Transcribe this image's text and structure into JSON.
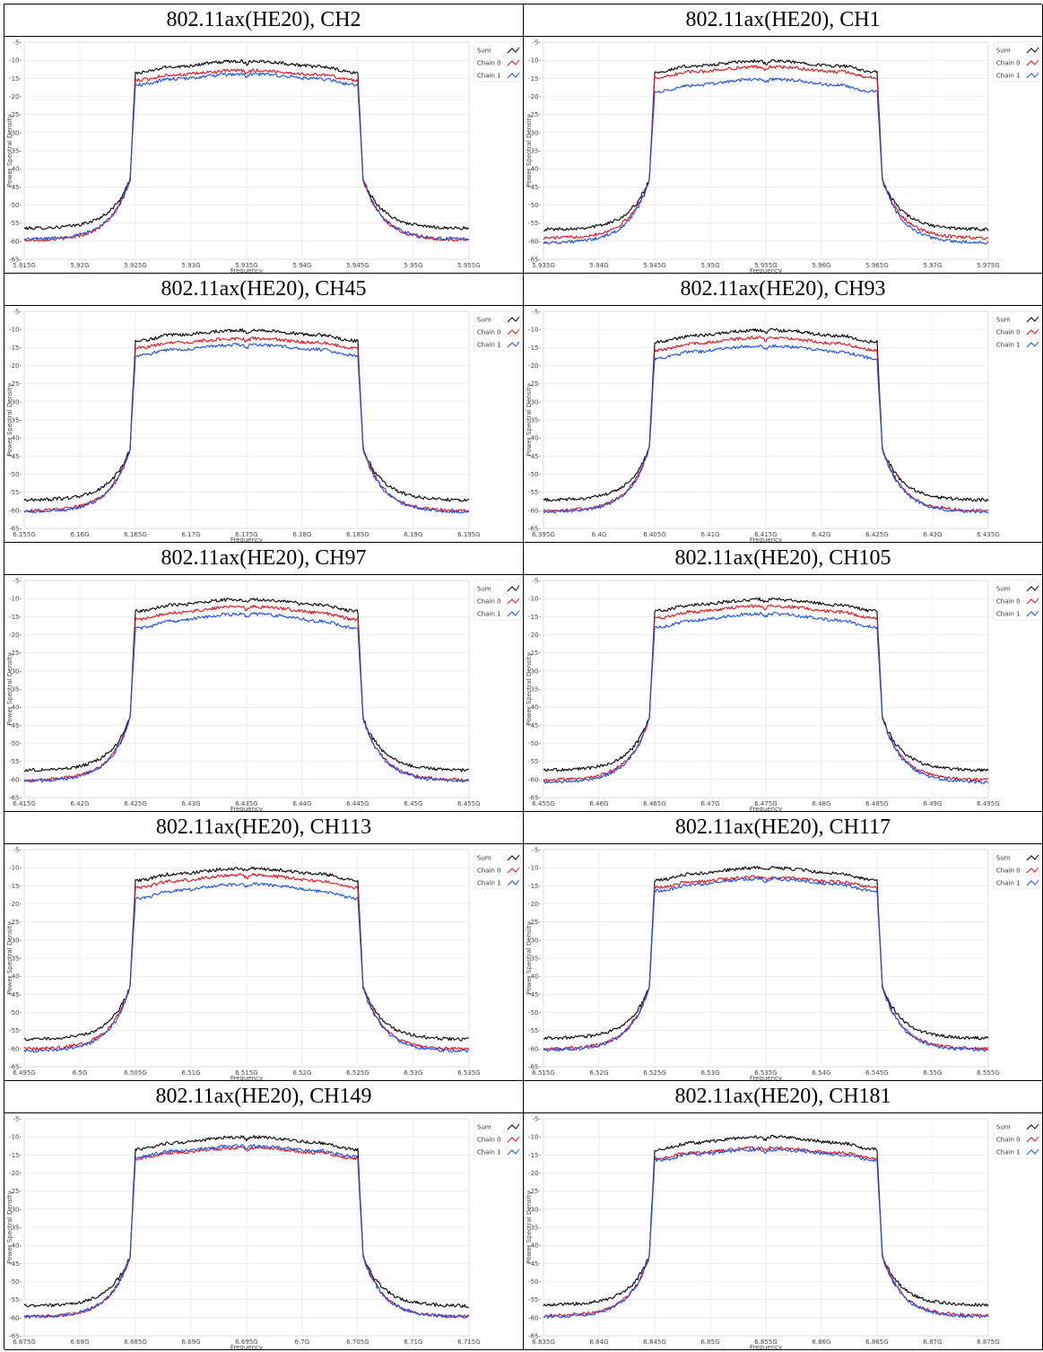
{
  "colors": {
    "sum": "#000000",
    "chain0": "#e8101a",
    "chain1": "#1a4fe8",
    "grid": "#e2e2e2"
  },
  "chart_data": [
    {
      "type": "line",
      "title": "802.11ax(HE20), CH2",
      "xlabel": "Frequency",
      "ylabel": "Power Spectral Density",
      "x_ticks": [
        "5.915G",
        "5.92G",
        "5.925G",
        "5.93G",
        "5.935G",
        "5.94G",
        "5.945G",
        "5.95G",
        "5.955G"
      ],
      "y_ticks": [
        "-5",
        "-10",
        "-15",
        "-20",
        "-25",
        "-30",
        "-35",
        "-40",
        "-45",
        "-50",
        "-55",
        "-60",
        "-65"
      ],
      "xlim": [
        5.915,
        5.955
      ],
      "ylim": [
        -65,
        -5
      ],
      "grid": true,
      "legend_position": "top-right",
      "series": [
        {
          "name": "Sum",
          "color": "#000000",
          "floor": -56.5,
          "edge": -13.5,
          "peak": -10.2
        },
        {
          "name": "Chain 0",
          "color": "#e8101a",
          "floor": -59.8,
          "edge": -15.5,
          "peak": -12.8
        },
        {
          "name": "Chain 1",
          "color": "#1a4fe8",
          "floor": -59.5,
          "edge": -16.8,
          "peak": -13.8
        }
      ]
    },
    {
      "type": "line",
      "title": "802.11ax(HE20), CH1",
      "xlabel": "Frequency",
      "ylabel": "Power Spectral Density",
      "x_ticks": [
        "5.935G",
        "5.94G",
        "5.945G",
        "5.95G",
        "5.955G",
        "5.96G",
        "5.965G",
        "5.97G",
        "5.975G"
      ],
      "y_ticks": [
        "-5",
        "-10",
        "-15",
        "-20",
        "-25",
        "-30",
        "-35",
        "-40",
        "-45",
        "-50",
        "-55",
        "-60",
        "-65"
      ],
      "xlim": [
        5.935,
        5.975
      ],
      "ylim": [
        -65,
        -5
      ],
      "grid": true,
      "legend_position": "top-right",
      "series": [
        {
          "name": "Sum",
          "color": "#000000",
          "floor": -56.8,
          "edge": -13.2,
          "peak": -10.2
        },
        {
          "name": "Chain 0",
          "color": "#e8101a",
          "floor": -59.2,
          "edge": -14.8,
          "peak": -11.8
        },
        {
          "name": "Chain 1",
          "color": "#1a4fe8",
          "floor": -60.5,
          "edge": -18.8,
          "peak": -15.2
        }
      ]
    },
    {
      "type": "line",
      "title": "802.11ax(HE20), CH45",
      "xlabel": "Frequency",
      "ylabel": "Power Spectral Density",
      "x_ticks": [
        "6.155G",
        "6.16G",
        "6.165G",
        "6.17G",
        "6.175G",
        "6.18G",
        "6.185G",
        "6.19G",
        "6.195G"
      ],
      "y_ticks": [
        "-5",
        "-10",
        "-15",
        "-20",
        "-25",
        "-30",
        "-35",
        "-40",
        "-45",
        "-50",
        "-55",
        "-60",
        "-65"
      ],
      "xlim": [
        6.155,
        6.195
      ],
      "ylim": [
        -65,
        -5
      ],
      "grid": true,
      "legend_position": "top-right",
      "series": [
        {
          "name": "Sum",
          "color": "#000000",
          "floor": -57.2,
          "edge": -13.2,
          "peak": -10.2
        },
        {
          "name": "Chain 0",
          "color": "#e8101a",
          "floor": -60.2,
          "edge": -15.2,
          "peak": -12.5
        },
        {
          "name": "Chain 1",
          "color": "#1a4fe8",
          "floor": -60.5,
          "edge": -17.2,
          "peak": -14.2
        }
      ]
    },
    {
      "type": "line",
      "title": "802.11ax(HE20), CH93",
      "xlabel": "Frequency",
      "ylabel": "Power Spectral Density",
      "x_ticks": [
        "6.395G",
        "6.4G",
        "6.405G",
        "6.41G",
        "6.415G",
        "6.42G",
        "6.425G",
        "6.43G",
        "6.435G"
      ],
      "y_ticks": [
        "-5",
        "-10",
        "-15",
        "-20",
        "-25",
        "-30",
        "-35",
        "-40",
        "-45",
        "-50",
        "-55",
        "-60",
        "-65"
      ],
      "xlim": [
        6.395,
        6.435
      ],
      "ylim": [
        -65,
        -5
      ],
      "grid": true,
      "legend_position": "top-right",
      "series": [
        {
          "name": "Sum",
          "color": "#000000",
          "floor": -57.2,
          "edge": -13.5,
          "peak": -10.2
        },
        {
          "name": "Chain 0",
          "color": "#e8101a",
          "floor": -60.2,
          "edge": -15.8,
          "peak": -12.2
        },
        {
          "name": "Chain 1",
          "color": "#1a4fe8",
          "floor": -60.5,
          "edge": -18.0,
          "peak": -14.5
        }
      ]
    },
    {
      "type": "line",
      "title": "802.11ax(HE20), CH97",
      "xlabel": "Frequency",
      "ylabel": "Power Spectral Density",
      "x_ticks": [
        "6.415G",
        "6.42G",
        "6.425G",
        "6.43G",
        "6.435G",
        "6.44G",
        "6.445G",
        "6.45G",
        "6.455G"
      ],
      "y_ticks": [
        "-5",
        "-10",
        "-15",
        "-20",
        "-25",
        "-30",
        "-35",
        "-40",
        "-45",
        "-50",
        "-55",
        "-60",
        "-65"
      ],
      "xlim": [
        6.415,
        6.455
      ],
      "ylim": [
        -65,
        -5
      ],
      "grid": true,
      "legend_position": "top-right",
      "series": [
        {
          "name": "Sum",
          "color": "#000000",
          "floor": -57.5,
          "edge": -13.5,
          "peak": -10.2
        },
        {
          "name": "Chain 0",
          "color": "#e8101a",
          "floor": -60.2,
          "edge": -15.8,
          "peak": -12.2
        },
        {
          "name": "Chain 1",
          "color": "#1a4fe8",
          "floor": -60.5,
          "edge": -18.2,
          "peak": -14.2
        }
      ]
    },
    {
      "type": "line",
      "title": "802.11ax(HE20), CH105",
      "xlabel": "Frequency",
      "ylabel": "Power Spectral Density",
      "x_ticks": [
        "6.455G",
        "6.46G",
        "6.465G",
        "6.47G",
        "6.475G",
        "6.48G",
        "6.485G",
        "6.49G",
        "6.495G"
      ],
      "y_ticks": [
        "-5",
        "-10",
        "-15",
        "-20",
        "-25",
        "-30",
        "-35",
        "-40",
        "-45",
        "-50",
        "-55",
        "-60",
        "-65"
      ],
      "xlim": [
        6.455,
        6.495
      ],
      "ylim": [
        -65,
        -5
      ],
      "grid": true,
      "legend_position": "top-right",
      "series": [
        {
          "name": "Sum",
          "color": "#000000",
          "floor": -57.5,
          "edge": -13.5,
          "peak": -10.2
        },
        {
          "name": "Chain 0",
          "color": "#e8101a",
          "floor": -60.2,
          "edge": -15.5,
          "peak": -12.0
        },
        {
          "name": "Chain 1",
          "color": "#1a4fe8",
          "floor": -60.8,
          "edge": -18.0,
          "peak": -14.2
        }
      ]
    },
    {
      "type": "line",
      "title": "802.11ax(HE20), CH113",
      "xlabel": "Frequency",
      "ylabel": "Power Spectral Density",
      "x_ticks": [
        "6.495G",
        "6.5G",
        "6.505G",
        "6.51G",
        "6.515G",
        "6.52G",
        "6.525G",
        "6.53G",
        "6.535G"
      ],
      "y_ticks": [
        "-5",
        "-10",
        "-15",
        "-20",
        "-25",
        "-30",
        "-35",
        "-40",
        "-45",
        "-50",
        "-55",
        "-60",
        "-65"
      ],
      "xlim": [
        6.495,
        6.535
      ],
      "ylim": [
        -65,
        -5
      ],
      "grid": true,
      "legend_position": "top-right",
      "series": [
        {
          "name": "Sum",
          "color": "#000000",
          "floor": -57.5,
          "edge": -13.5,
          "peak": -10.2
        },
        {
          "name": "Chain 0",
          "color": "#e8101a",
          "floor": -60.2,
          "edge": -15.5,
          "peak": -12.0
        },
        {
          "name": "Chain 1",
          "color": "#1a4fe8",
          "floor": -60.8,
          "edge": -18.5,
          "peak": -14.5
        }
      ]
    },
    {
      "type": "line",
      "title": "802.11ax(HE20), CH117",
      "xlabel": "Frequency",
      "ylabel": "Power Spectral Density",
      "x_ticks": [
        "6.515G",
        "6.52G",
        "6.525G",
        "6.53G",
        "6.535G",
        "6.54G",
        "6.545G",
        "6.55G",
        "6.555G"
      ],
      "y_ticks": [
        "-5",
        "-10",
        "-15",
        "-20",
        "-25",
        "-30",
        "-35",
        "-40",
        "-45",
        "-50",
        "-55",
        "-60",
        "-65"
      ],
      "xlim": [
        6.515,
        6.555
      ],
      "ylim": [
        -65,
        -5
      ],
      "grid": true,
      "legend_position": "top-right",
      "series": [
        {
          "name": "Sum",
          "color": "#000000",
          "floor": -57.2,
          "edge": -13.5,
          "peak": -10.0
        },
        {
          "name": "Chain 0",
          "color": "#e8101a",
          "floor": -60.2,
          "edge": -15.5,
          "peak": -12.5
        },
        {
          "name": "Chain 1",
          "color": "#1a4fe8",
          "floor": -60.5,
          "edge": -16.5,
          "peak": -13.0
        }
      ]
    },
    {
      "type": "line",
      "title": "802.11ax(HE20), CH149",
      "xlabel": "Frequency",
      "ylabel": "Power Spectral Density",
      "x_ticks": [
        "6.675G",
        "6.68G",
        "6.685G",
        "6.69G",
        "6.695G",
        "6.7G",
        "6.705G",
        "6.71G",
        "6.715G"
      ],
      "y_ticks": [
        "-5",
        "-10",
        "-15",
        "-20",
        "-25",
        "-30",
        "-35",
        "-40",
        "-45",
        "-50",
        "-55",
        "-60",
        "-65"
      ],
      "xlim": [
        6.675,
        6.715
      ],
      "ylim": [
        -65,
        -5
      ],
      "grid": true,
      "legend_position": "top-right",
      "series": [
        {
          "name": "Sum",
          "color": "#000000",
          "floor": -56.8,
          "edge": -13.5,
          "peak": -10.0
        },
        {
          "name": "Chain 0",
          "color": "#e8101a",
          "floor": -59.8,
          "edge": -16.0,
          "peak": -13.0
        },
        {
          "name": "Chain 1",
          "color": "#1a4fe8",
          "floor": -59.8,
          "edge": -15.5,
          "peak": -12.5
        }
      ]
    },
    {
      "type": "line",
      "title": "802.11ax(HE20), CH181",
      "xlabel": "Frequency",
      "ylabel": "Power Spectral Density",
      "x_ticks": [
        "6.835G",
        "6.84G",
        "6.845G",
        "6.85G",
        "6.855G",
        "6.86G",
        "6.865G",
        "6.87G",
        "6.875G"
      ],
      "y_ticks": [
        "-5",
        "-10",
        "-15",
        "-20",
        "-25",
        "-30",
        "-35",
        "-40",
        "-45",
        "-50",
        "-55",
        "-60",
        "-65"
      ],
      "xlim": [
        6.835,
        6.875
      ],
      "ylim": [
        -65,
        -5
      ],
      "grid": true,
      "legend_position": "top-right",
      "series": [
        {
          "name": "Sum",
          "color": "#000000",
          "floor": -56.5,
          "edge": -13.5,
          "peak": -10.0
        },
        {
          "name": "Chain 0",
          "color": "#e8101a",
          "floor": -59.5,
          "edge": -16.0,
          "peak": -13.0
        },
        {
          "name": "Chain 1",
          "color": "#1a4fe8",
          "floor": -59.8,
          "edge": -16.5,
          "peak": -13.5
        }
      ]
    }
  ]
}
